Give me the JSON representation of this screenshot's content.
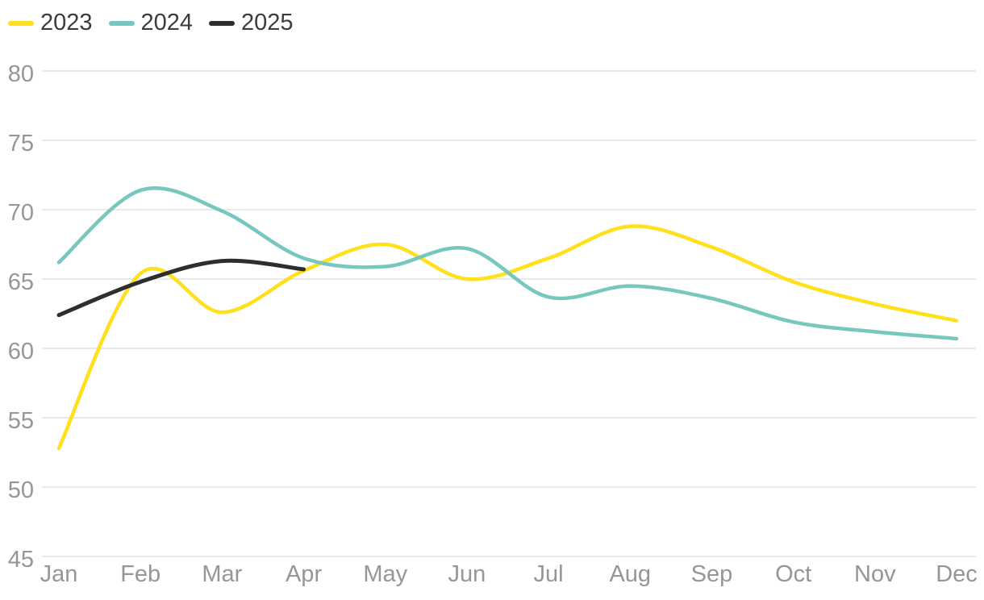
{
  "legend": [
    {
      "label": "2023",
      "color": "#FFE01A"
    },
    {
      "label": "2024",
      "color": "#76C7BE"
    },
    {
      "label": "2025",
      "color": "#2E2E2E"
    }
  ],
  "chart_data": {
    "type": "line",
    "title": "",
    "xlabel": "",
    "ylabel": "",
    "x": [
      "Jan",
      "Feb",
      "Mar",
      "Apr",
      "May",
      "Jun",
      "Jul",
      "Aug",
      "Sep",
      "Oct",
      "Nov",
      "Dec"
    ],
    "series": [
      {
        "name": "2023",
        "color": "#FFE01A",
        "values": [
          52.8,
          65.4,
          62.6,
          65.6,
          67.5,
          65.0,
          66.5,
          68.8,
          67.3,
          64.8,
          63.2,
          62.0
        ]
      },
      {
        "name": "2024",
        "color": "#76C7BE",
        "values": [
          66.2,
          71.4,
          69.9,
          66.5,
          65.9,
          67.2,
          63.7,
          64.5,
          63.6,
          61.9,
          61.2,
          60.7
        ]
      },
      {
        "name": "2025",
        "color": "#2E2E2E",
        "values": [
          62.4,
          64.8,
          66.3,
          65.7
        ]
      }
    ],
    "ylim": [
      45,
      80
    ],
    "yticks": [
      45,
      50,
      55,
      60,
      65,
      70,
      75,
      80
    ],
    "grid": "horizontal",
    "legend_position": "top-left"
  },
  "styles": {
    "grid_color": "#E9E9E9",
    "tick_label_color": "#969696",
    "legend_text_color": "#3C3C3C",
    "background": "#FFFFFF"
  }
}
